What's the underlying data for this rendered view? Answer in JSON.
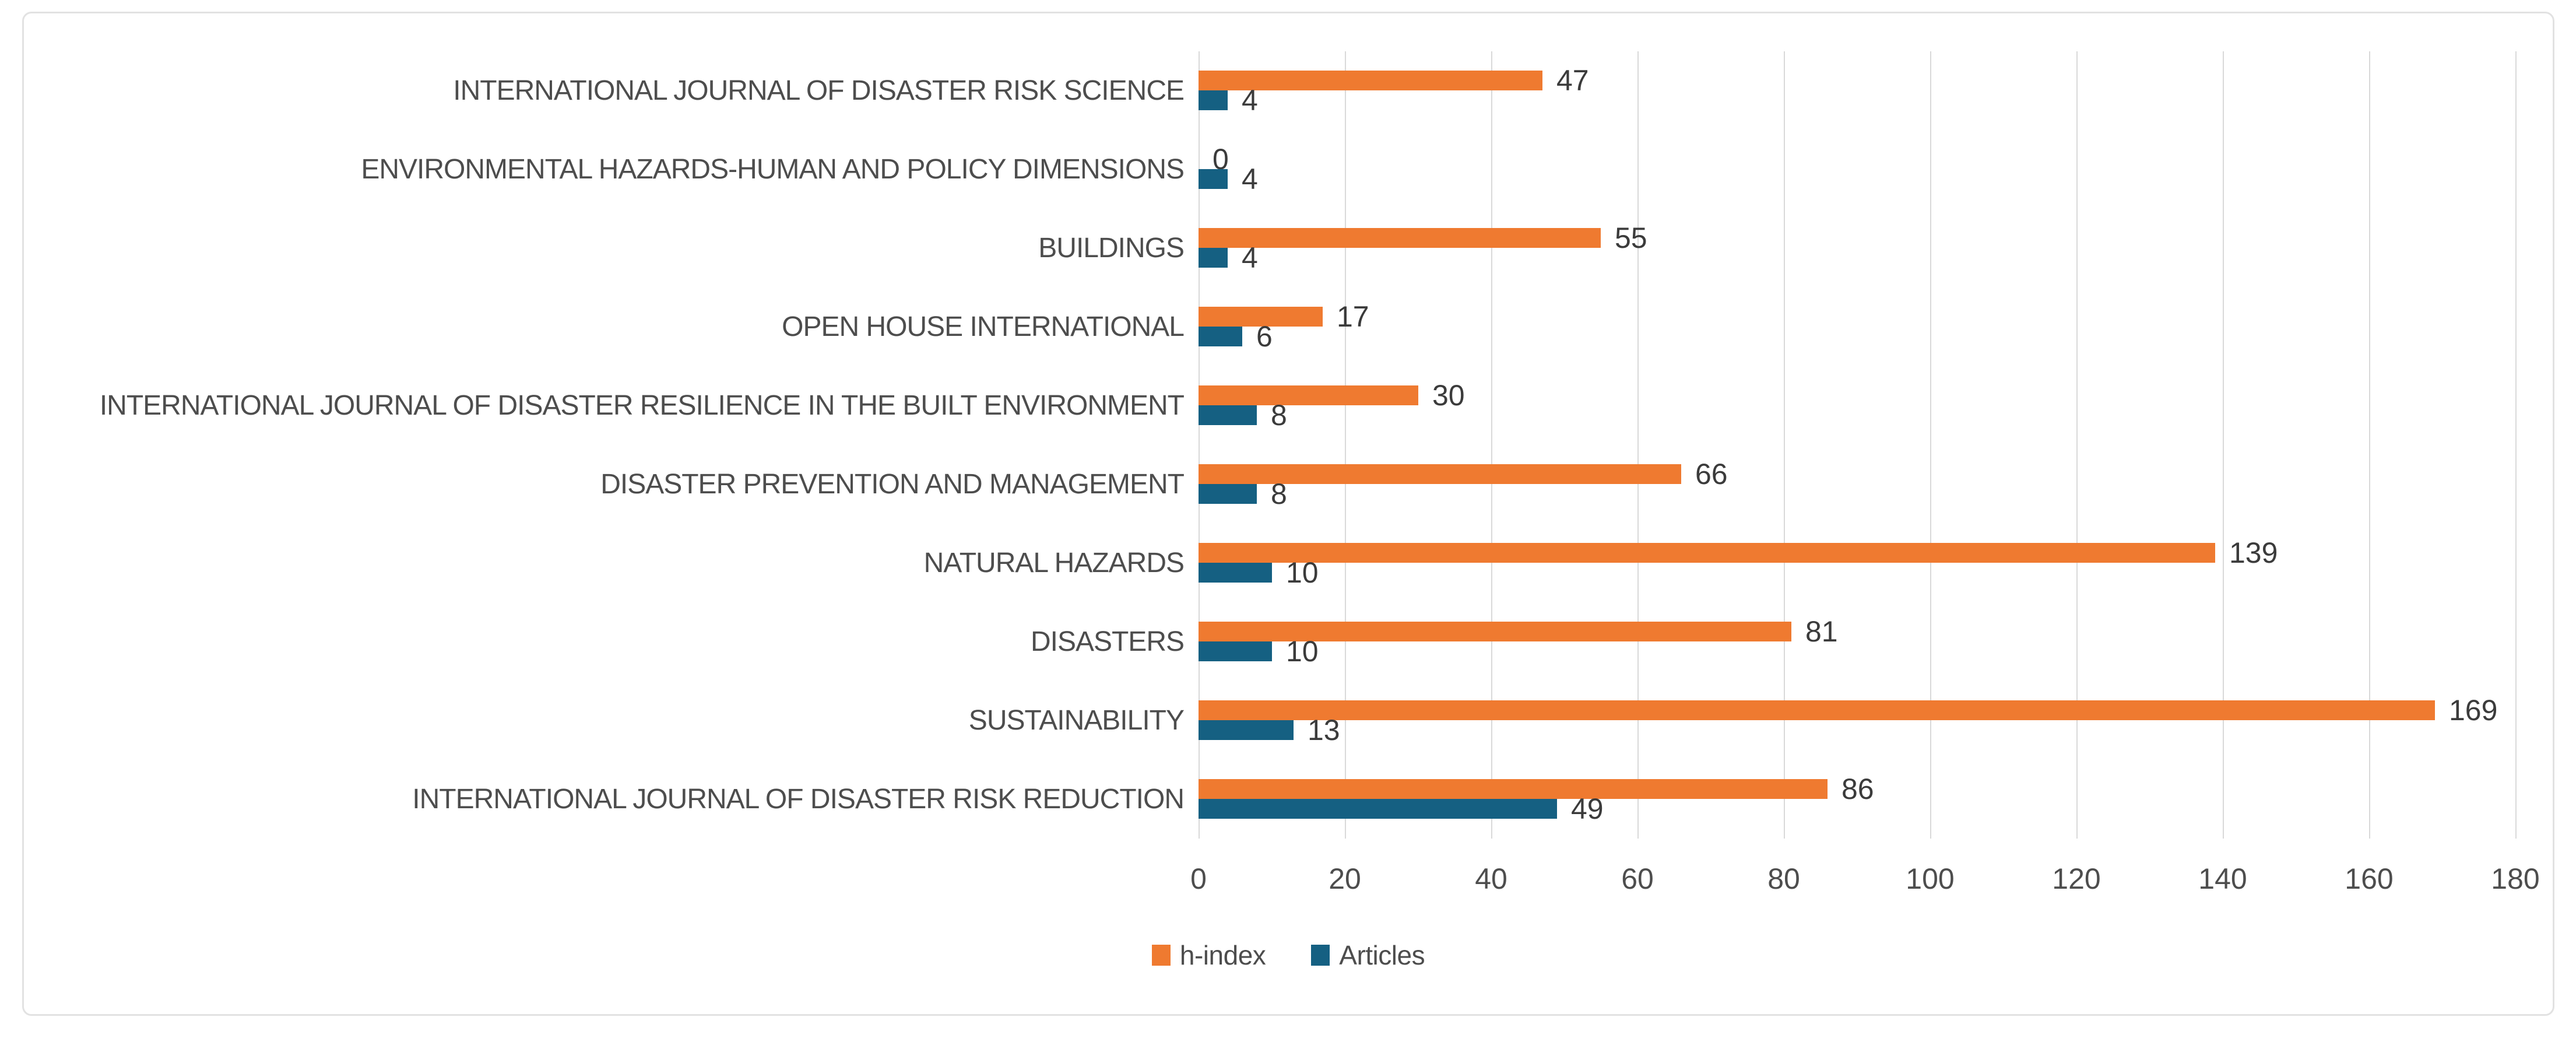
{
  "chart_data": {
    "type": "bar",
    "orientation": "horizontal",
    "title": "",
    "xlabel": "",
    "ylabel": "",
    "categories": [
      "INTERNATIONAL JOURNAL OF DISASTER RISK SCIENCE",
      "ENVIRONMENTAL HAZARDS-HUMAN AND POLICY DIMENSIONS",
      "BUILDINGS",
      "OPEN HOUSE INTERNATIONAL",
      "INTERNATIONAL JOURNAL OF DISASTER RESILIENCE IN THE BUILT ENVIRONMENT",
      "DISASTER PREVENTION AND MANAGEMENT",
      "NATURAL HAZARDS",
      "DISASTERS",
      "SUSTAINABILITY",
      "INTERNATIONAL JOURNAL OF DISASTER RISK REDUCTION"
    ],
    "series": [
      {
        "name": "h-index",
        "color": "#EF7A30",
        "values": [
          47,
          0,
          55,
          17,
          30,
          66,
          139,
          81,
          169,
          86
        ]
      },
      {
        "name": "Articles",
        "color": "#156082",
        "values": [
          4,
          4,
          4,
          6,
          8,
          8,
          10,
          10,
          13,
          49
        ]
      }
    ],
    "xlim": [
      0,
      180
    ],
    "x_ticks": [
      0,
      20,
      40,
      60,
      80,
      100,
      120,
      140,
      160,
      180
    ],
    "grid": "vertical-on",
    "legend_position": "bottom",
    "value_labels": "end-of-bar"
  },
  "colors": {
    "h_index": "#EF7A30",
    "articles": "#156082",
    "gridline": "#d9d9d9",
    "category_text": "#4d4d4d",
    "value_text": "#3b3b3b",
    "tick_text": "#4d4d4d",
    "frame_border": "#e2e2e2",
    "background": "#ffffff"
  }
}
